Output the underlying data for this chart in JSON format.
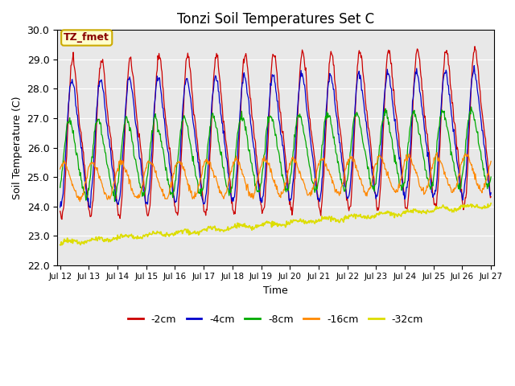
{
  "title": "Tonzi Soil Temperatures Set C",
  "xlabel": "Time",
  "ylabel": "Soil Temperature (C)",
  "annotation": "TZ_fmet",
  "ylim": [
    22.0,
    30.0
  ],
  "yticks": [
    22.0,
    23.0,
    24.0,
    25.0,
    26.0,
    27.0,
    28.0,
    29.0,
    30.0
  ],
  "n_days": 15,
  "colors": {
    "-2cm": "#cc0000",
    "-4cm": "#0000cc",
    "-8cm": "#00aa00",
    "-16cm": "#ff8800",
    "-32cm": "#dddd00"
  },
  "legend_labels": [
    "-2cm",
    "-4cm",
    "-8cm",
    "-16cm",
    "-32cm"
  ],
  "background_color": "#e8e8e8",
  "figure_color": "#ffffff",
  "annotation_facecolor": "#ffffcc",
  "annotation_edgecolor": "#ccaa00",
  "annotation_textcolor": "#880000"
}
